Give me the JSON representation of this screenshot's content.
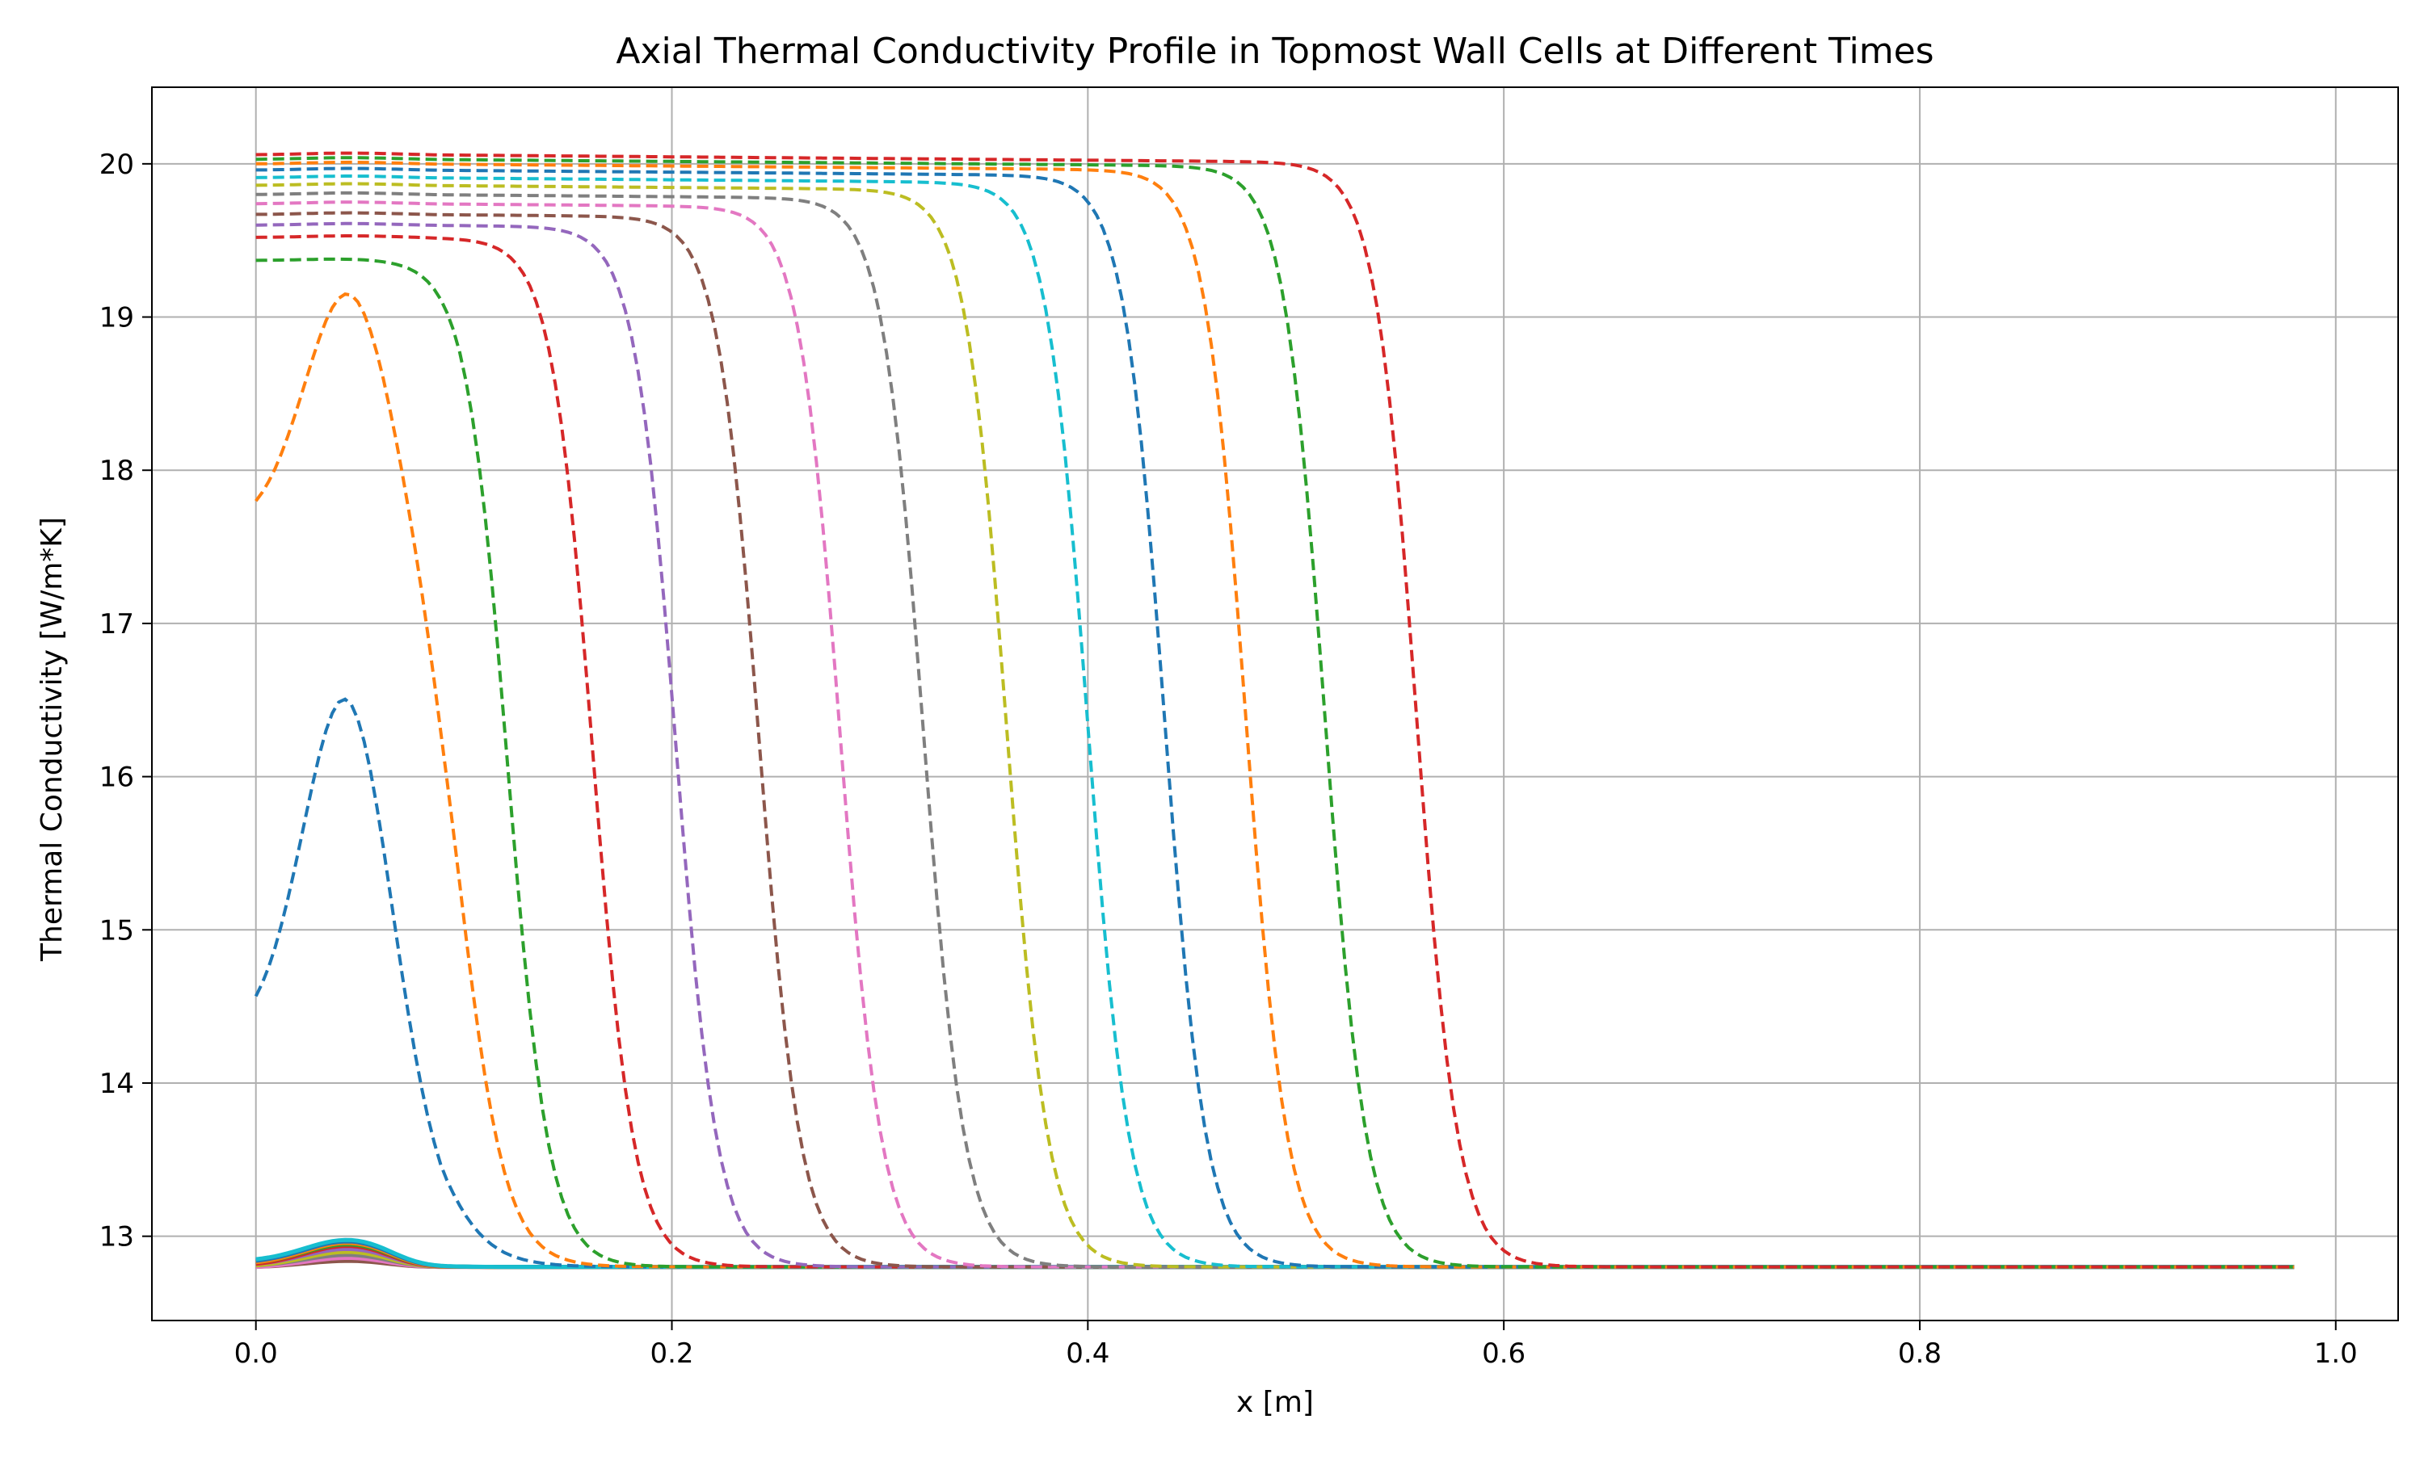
{
  "chart_data": {
    "type": "line",
    "title": "Axial Thermal Conductivity Profile in Topmost Wall Cells at Different Times",
    "xlabel": "x [m]",
    "ylabel": "Thermal Conductivity [W/m*K]",
    "xlim": [
      -0.05,
      1.03
    ],
    "ylim": [
      12.45,
      20.5
    ],
    "x_ticks": [
      0.0,
      0.2,
      0.4,
      0.6,
      0.8,
      1.0
    ],
    "x_tick_labels": [
      "0.0",
      "0.2",
      "0.4",
      "0.6",
      "0.8",
      "1.0"
    ],
    "y_ticks": [
      13,
      14,
      15,
      16,
      17,
      18,
      19,
      20
    ],
    "y_tick_labels": [
      "13",
      "14",
      "15",
      "16",
      "17",
      "18",
      "19",
      "20"
    ],
    "grid": true,
    "legend": null,
    "baseline_value": 12.8,
    "x_max": 0.98,
    "early_series": [
      {
        "style": "solid",
        "color": "#8c564b",
        "start": 12.8,
        "peak": 12.84
      },
      {
        "style": "solid",
        "color": "#e377c2",
        "start": 12.8,
        "peak": 12.86
      },
      {
        "style": "solid",
        "color": "#7f7f7f",
        "start": 12.81,
        "peak": 12.88
      },
      {
        "style": "solid",
        "color": "#bcbd22",
        "start": 12.81,
        "peak": 12.9
      },
      {
        "style": "solid",
        "color": "#9467bd",
        "start": 12.82,
        "peak": 12.92
      },
      {
        "style": "solid",
        "color": "#d62728",
        "start": 12.82,
        "peak": 12.94
      },
      {
        "style": "solid",
        "color": "#2ca02c",
        "start": 12.83,
        "peak": 12.95
      },
      {
        "style": "solid",
        "color": "#ff7f0e",
        "start": 12.83,
        "peak": 12.96
      },
      {
        "style": "solid",
        "color": "#1f77b4",
        "start": 12.84,
        "peak": 12.97
      },
      {
        "style": "solid",
        "color": "#17becf",
        "start": 12.85,
        "peak": 12.98
      }
    ],
    "series": [
      {
        "color": "#1f77b4",
        "start": 14.57,
        "peak": 16.7,
        "front": 0.082,
        "width": 0.013
      },
      {
        "color": "#ff7f0e",
        "start": 17.8,
        "peak": 19.2,
        "front": 0.098,
        "width": 0.011
      },
      {
        "color": "#2ca02c",
        "start": 19.37,
        "peak": 19.38,
        "front": 0.121,
        "width": 0.01
      },
      {
        "color": "#d62728",
        "start": 19.52,
        "peak": 19.53,
        "front": 0.162,
        "width": 0.01
      },
      {
        "color": "#9467bd",
        "start": 19.6,
        "peak": 19.61,
        "front": 0.202,
        "width": 0.01
      },
      {
        "color": "#8c564b",
        "start": 19.67,
        "peak": 19.68,
        "front": 0.242,
        "width": 0.01
      },
      {
        "color": "#e377c2",
        "start": 19.74,
        "peak": 19.75,
        "front": 0.281,
        "width": 0.01
      },
      {
        "color": "#7f7f7f",
        "start": 19.8,
        "peak": 19.81,
        "front": 0.321,
        "width": 0.01
      },
      {
        "color": "#bcbd22",
        "start": 19.86,
        "peak": 19.87,
        "front": 0.361,
        "width": 0.01
      },
      {
        "color": "#17becf",
        "start": 19.91,
        "peak": 19.92,
        "front": 0.4,
        "width": 0.01
      },
      {
        "color": "#1f77b4",
        "start": 19.96,
        "peak": 19.97,
        "front": 0.437,
        "width": 0.01
      },
      {
        "color": "#ff7f0e",
        "start": 20.0,
        "peak": 20.01,
        "front": 0.476,
        "width": 0.01
      },
      {
        "color": "#2ca02c",
        "start": 20.03,
        "peak": 20.04,
        "front": 0.514,
        "width": 0.01
      },
      {
        "color": "#d62728",
        "start": 20.06,
        "peak": 20.07,
        "front": 0.558,
        "width": 0.01
      }
    ]
  }
}
